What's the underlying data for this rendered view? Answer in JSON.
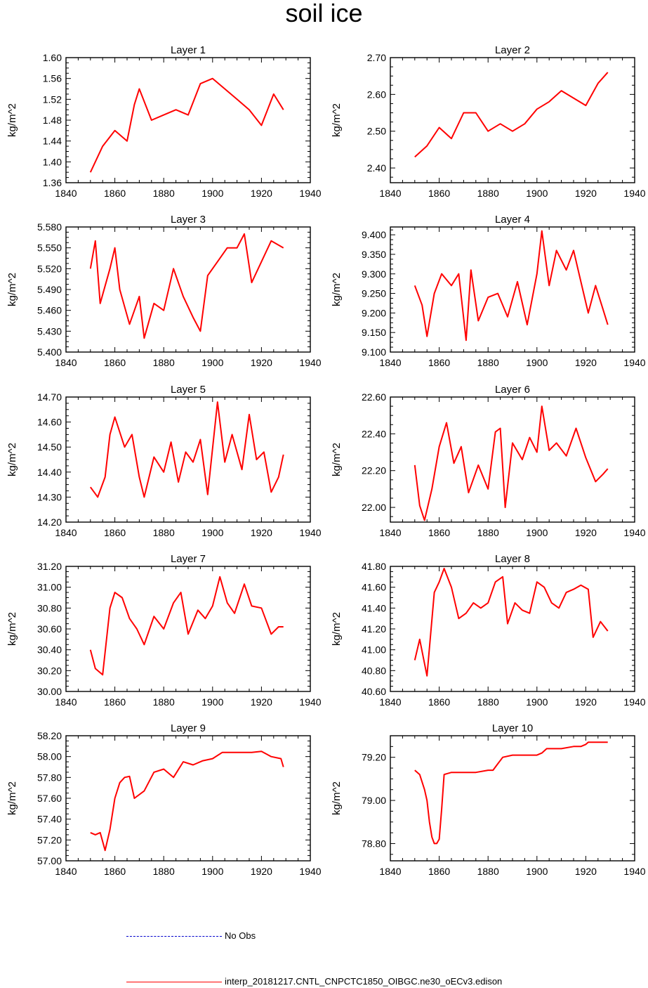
{
  "title": "soil ice",
  "legend": {
    "obs_label": "No Obs",
    "model_label": "interp_20181217.CNTL_CNPCTC1850_OIBGC.ne30_oECv3.edison"
  },
  "colors": {
    "model": "#ff0000",
    "obs": "#0000cc"
  },
  "chart_data": [
    {
      "type": "line",
      "title": "Layer 1",
      "xlabel": "",
      "ylabel": "kg/m^2",
      "xlim": [
        1840,
        1940
      ],
      "xticks": [
        1840,
        1860,
        1880,
        1900,
        1920,
        1940
      ],
      "ylim": [
        1.36,
        1.6
      ],
      "yticks": [
        1.36,
        1.4,
        1.44,
        1.48,
        1.52,
        1.56,
        1.6
      ],
      "decimals": 2,
      "x": [
        1850,
        1855,
        1860,
        1865,
        1868,
        1870,
        1875,
        1880,
        1885,
        1890,
        1895,
        1900,
        1905,
        1910,
        1915,
        1920,
        1925,
        1929
      ],
      "values": [
        1.38,
        1.43,
        1.46,
        1.44,
        1.51,
        1.54,
        1.48,
        1.49,
        1.5,
        1.49,
        1.55,
        1.56,
        1.54,
        1.52,
        1.5,
        1.47,
        1.53,
        1.5
      ]
    },
    {
      "type": "line",
      "title": "Layer 2",
      "xlabel": "",
      "ylabel": "kg/m^2",
      "xlim": [
        1840,
        1940
      ],
      "xticks": [
        1840,
        1860,
        1880,
        1900,
        1920,
        1940
      ],
      "ylim": [
        2.36,
        2.7
      ],
      "yticks": [
        2.4,
        2.5,
        2.6,
        2.7
      ],
      "decimals": 2,
      "x": [
        1850,
        1855,
        1860,
        1865,
        1870,
        1875,
        1880,
        1885,
        1890,
        1895,
        1900,
        1905,
        1910,
        1915,
        1920,
        1925,
        1929
      ],
      "values": [
        2.43,
        2.46,
        2.51,
        2.48,
        2.55,
        2.55,
        2.5,
        2.52,
        2.5,
        2.52,
        2.56,
        2.58,
        2.61,
        2.59,
        2.57,
        2.63,
        2.66
      ]
    },
    {
      "type": "line",
      "title": "Layer 3",
      "xlabel": "",
      "ylabel": "kg/m^2",
      "xlim": [
        1840,
        1940
      ],
      "xticks": [
        1840,
        1860,
        1880,
        1900,
        1920,
        1940
      ],
      "ylim": [
        5.4,
        5.58
      ],
      "yticks": [
        5.4,
        5.43,
        5.46,
        5.49,
        5.52,
        5.55,
        5.58
      ],
      "decimals": 3,
      "x": [
        1850,
        1852,
        1854,
        1858,
        1860,
        1862,
        1866,
        1870,
        1872,
        1876,
        1880,
        1884,
        1888,
        1892,
        1895,
        1898,
        1902,
        1906,
        1910,
        1913,
        1916,
        1920,
        1924,
        1929
      ],
      "values": [
        5.52,
        5.56,
        5.47,
        5.52,
        5.55,
        5.49,
        5.44,
        5.48,
        5.42,
        5.47,
        5.46,
        5.52,
        5.48,
        5.45,
        5.43,
        5.51,
        5.53,
        5.55,
        5.55,
        5.57,
        5.5,
        5.53,
        5.56,
        5.55
      ]
    },
    {
      "type": "line",
      "title": "Layer 4",
      "xlabel": "",
      "ylabel": "kg/m^2",
      "xlim": [
        1840,
        1940
      ],
      "xticks": [
        1840,
        1860,
        1880,
        1900,
        1920,
        1940
      ],
      "ylim": [
        9.1,
        9.42
      ],
      "yticks": [
        9.1,
        9.15,
        9.2,
        9.25,
        9.3,
        9.35,
        9.4
      ],
      "decimals": 3,
      "x": [
        1850,
        1853,
        1855,
        1858,
        1861,
        1865,
        1868,
        1871,
        1873,
        1876,
        1880,
        1884,
        1888,
        1892,
        1896,
        1900,
        1902,
        1905,
        1908,
        1912,
        1915,
        1918,
        1921,
        1924,
        1927,
        1929
      ],
      "values": [
        9.27,
        9.22,
        9.14,
        9.25,
        9.3,
        9.27,
        9.3,
        9.13,
        9.31,
        9.18,
        9.24,
        9.25,
        9.19,
        9.28,
        9.17,
        9.3,
        9.41,
        9.27,
        9.36,
        9.31,
        9.36,
        9.28,
        9.2,
        9.27,
        9.21,
        9.17
      ]
    },
    {
      "type": "line",
      "title": "Layer 5",
      "xlabel": "",
      "ylabel": "kg/m^2",
      "xlim": [
        1840,
        1940
      ],
      "xticks": [
        1840,
        1860,
        1880,
        1900,
        1920,
        1940
      ],
      "ylim": [
        14.2,
        14.7
      ],
      "yticks": [
        14.2,
        14.3,
        14.4,
        14.5,
        14.6,
        14.7
      ],
      "decimals": 2,
      "x": [
        1850,
        1853,
        1856,
        1858,
        1860,
        1864,
        1867,
        1870,
        1872,
        1876,
        1880,
        1883,
        1886,
        1889,
        1892,
        1895,
        1898,
        1902,
        1905,
        1908,
        1912,
        1915,
        1918,
        1921,
        1924,
        1927,
        1929
      ],
      "values": [
        14.34,
        14.3,
        14.38,
        14.55,
        14.62,
        14.5,
        14.55,
        14.38,
        14.3,
        14.46,
        14.4,
        14.52,
        14.36,
        14.48,
        14.44,
        14.53,
        14.31,
        14.68,
        14.44,
        14.55,
        14.41,
        14.63,
        14.45,
        14.48,
        14.32,
        14.38,
        14.47
      ]
    },
    {
      "type": "line",
      "title": "Layer 6",
      "xlabel": "",
      "ylabel": "kg/m^2",
      "xlim": [
        1840,
        1940
      ],
      "xticks": [
        1840,
        1860,
        1880,
        1900,
        1920,
        1940
      ],
      "ylim": [
        21.92,
        22.6
      ],
      "yticks": [
        22.0,
        22.2,
        22.4,
        22.6
      ],
      "decimals": 2,
      "x": [
        1850,
        1852,
        1854,
        1857,
        1860,
        1863,
        1866,
        1869,
        1872,
        1876,
        1880,
        1883,
        1885,
        1887,
        1890,
        1894,
        1897,
        1900,
        1902,
        1905,
        1908,
        1912,
        1916,
        1920,
        1924,
        1927,
        1929
      ],
      "values": [
        22.23,
        22.01,
        21.93,
        22.1,
        22.33,
        22.46,
        22.24,
        22.33,
        22.08,
        22.23,
        22.1,
        22.41,
        22.43,
        22.0,
        22.35,
        22.26,
        22.38,
        22.3,
        22.55,
        22.31,
        22.35,
        22.28,
        22.43,
        22.27,
        22.14,
        22.18,
        22.21
      ]
    },
    {
      "type": "line",
      "title": "Layer 7",
      "xlabel": "",
      "ylabel": "kg/m^2",
      "xlim": [
        1840,
        1940
      ],
      "xticks": [
        1840,
        1860,
        1880,
        1900,
        1920,
        1940
      ],
      "ylim": [
        30.0,
        31.2
      ],
      "yticks": [
        30.0,
        30.2,
        30.4,
        30.6,
        30.8,
        31.0,
        31.2
      ],
      "decimals": 2,
      "x": [
        1850,
        1852,
        1855,
        1858,
        1860,
        1863,
        1866,
        1869,
        1872,
        1876,
        1880,
        1884,
        1887,
        1890,
        1894,
        1897,
        1900,
        1903,
        1906,
        1909,
        1913,
        1916,
        1920,
        1924,
        1927,
        1929
      ],
      "values": [
        30.4,
        30.22,
        30.16,
        30.8,
        30.95,
        30.9,
        30.7,
        30.6,
        30.45,
        30.72,
        30.6,
        30.85,
        30.95,
        30.55,
        30.78,
        30.7,
        30.82,
        31.1,
        30.85,
        30.75,
        31.03,
        30.82,
        30.8,
        30.55,
        30.62,
        30.62
      ]
    },
    {
      "type": "line",
      "title": "Layer 8",
      "xlabel": "",
      "ylabel": "kg/m^2",
      "xlim": [
        1840,
        1940
      ],
      "xticks": [
        1840,
        1860,
        1880,
        1900,
        1920,
        1940
      ],
      "ylim": [
        40.6,
        41.8
      ],
      "yticks": [
        40.6,
        40.8,
        41.0,
        41.2,
        41.4,
        41.6,
        41.8
      ],
      "decimals": 2,
      "x": [
        1850,
        1852,
        1855,
        1858,
        1860,
        1862,
        1865,
        1868,
        1871,
        1874,
        1877,
        1880,
        1883,
        1886,
        1888,
        1891,
        1894,
        1897,
        1900,
        1903,
        1906,
        1909,
        1912,
        1915,
        1918,
        1921,
        1923,
        1926,
        1929
      ],
      "values": [
        40.9,
        41.1,
        40.75,
        41.55,
        41.65,
        41.78,
        41.6,
        41.3,
        41.35,
        41.45,
        41.4,
        41.45,
        41.65,
        41.7,
        41.25,
        41.45,
        41.38,
        41.35,
        41.65,
        41.6,
        41.45,
        41.4,
        41.55,
        41.58,
        41.62,
        41.58,
        41.12,
        41.27,
        41.18
      ]
    },
    {
      "type": "line",
      "title": "Layer 9",
      "xlabel": "",
      "ylabel": "kg/m^2",
      "xlim": [
        1840,
        1940
      ],
      "xticks": [
        1840,
        1860,
        1880,
        1900,
        1920,
        1940
      ],
      "ylim": [
        57.0,
        58.2
      ],
      "yticks": [
        57.0,
        57.2,
        57.4,
        57.6,
        57.8,
        58.0,
        58.2
      ],
      "decimals": 2,
      "x": [
        1850,
        1852,
        1854,
        1856,
        1858,
        1860,
        1862,
        1864,
        1866,
        1868,
        1872,
        1876,
        1880,
        1884,
        1888,
        1892,
        1896,
        1900,
        1904,
        1910,
        1916,
        1920,
        1924,
        1928,
        1929
      ],
      "values": [
        57.27,
        57.25,
        57.27,
        57.1,
        57.3,
        57.6,
        57.75,
        57.8,
        57.81,
        57.6,
        57.67,
        57.85,
        57.88,
        57.8,
        57.95,
        57.92,
        57.96,
        57.98,
        58.04,
        58.04,
        58.04,
        58.05,
        58.0,
        57.98,
        57.9
      ]
    },
    {
      "type": "line",
      "title": "Layer 10",
      "xlabel": "",
      "ylabel": "kg/m^2",
      "xlim": [
        1840,
        1940
      ],
      "xticks": [
        1840,
        1860,
        1880,
        1900,
        1920,
        1940
      ],
      "ylim": [
        78.72,
        79.3
      ],
      "yticks": [
        78.8,
        79.0,
        79.2
      ],
      "decimals": 2,
      "x": [
        1850,
        1852,
        1854,
        1855,
        1856,
        1857,
        1858,
        1859,
        1860,
        1861,
        1862,
        1865,
        1870,
        1875,
        1880,
        1882,
        1884,
        1886,
        1890,
        1895,
        1900,
        1902,
        1904,
        1910,
        1915,
        1918,
        1920,
        1921,
        1925,
        1929
      ],
      "values": [
        79.14,
        79.12,
        79.05,
        79.0,
        78.9,
        78.83,
        78.8,
        78.8,
        78.82,
        78.96,
        79.12,
        79.13,
        79.13,
        79.13,
        79.14,
        79.14,
        79.17,
        79.2,
        79.21,
        79.21,
        79.21,
        79.22,
        79.24,
        79.24,
        79.25,
        79.25,
        79.26,
        79.27,
        79.27,
        79.27
      ]
    }
  ]
}
